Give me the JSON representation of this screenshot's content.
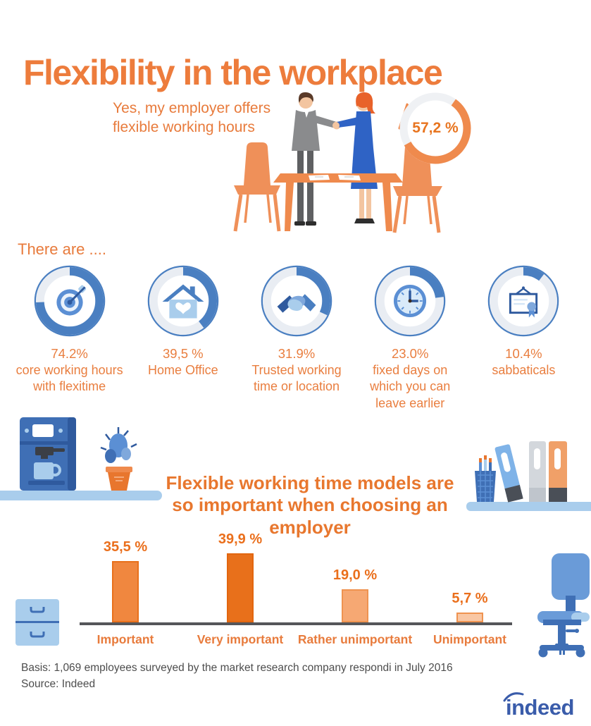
{
  "title": "Flexibility in the workplace",
  "hero": {
    "statement": "Yes, my employer offers\nflexible working hours",
    "bubble_value": "57,2 %",
    "bubble_percent": 57.2
  },
  "options_section": {
    "heading": "There are ....",
    "items": [
      {
        "icon": "target-icon",
        "percent": 74.2,
        "value": "74.2%",
        "label": "core working hours\nwith flexitime"
      },
      {
        "icon": "home-icon",
        "percent": 39.5,
        "value": "39,5 %",
        "label": "Home Office"
      },
      {
        "icon": "handshake-icon",
        "percent": 31.9,
        "value": "31.9%",
        "label": "Trusted working\ntime or location"
      },
      {
        "icon": "clock-icon",
        "percent": 23.0,
        "value": "23.0%",
        "label": "fixed days on\nwhich you can\nleave earlier"
      },
      {
        "icon": "certificate-icon",
        "percent": 10.4,
        "value": "10.4%",
        "label": "sabbaticals"
      }
    ]
  },
  "chart_data": {
    "type": "bar",
    "title": "Flexible working time models are\nso important when choosing an\nemployer",
    "categories": [
      "Important",
      "Very important",
      "Rather unimportant",
      "Unimportant"
    ],
    "values": [
      35.5,
      39.9,
      19.0,
      5.7
    ],
    "value_labels": [
      "35,5 %",
      "39,9 %",
      "19,0 %",
      "5,7 %"
    ],
    "bar_colors": [
      "#F0873F",
      "#E8701B",
      "#F6A873",
      "#F9C7A4"
    ],
    "bar_border_colors": [
      "#E8701B",
      "#E2660F",
      "#EF9350",
      "#EF9350"
    ],
    "xlabel": "",
    "ylabel": "",
    "ylim": [
      0,
      45
    ],
    "grid": false,
    "legend": false
  },
  "footer": {
    "basis": "Basis: 1,069 employees surveyed by the market research company respondi in July 2016",
    "source": "Source: Indeed",
    "logo_text": "indeed"
  },
  "colors": {
    "orange_text": "#E87B3C",
    "orange_dark": "#EA6F1C",
    "icon_blue": "#4A7FC1",
    "icon_blue_light": "#A9CDEC",
    "ring_rest": "#E9EDF3",
    "axis_gray": "#55565A",
    "text_gray": "#4D4D4D",
    "indeed_blue": "#3A5CAA"
  }
}
